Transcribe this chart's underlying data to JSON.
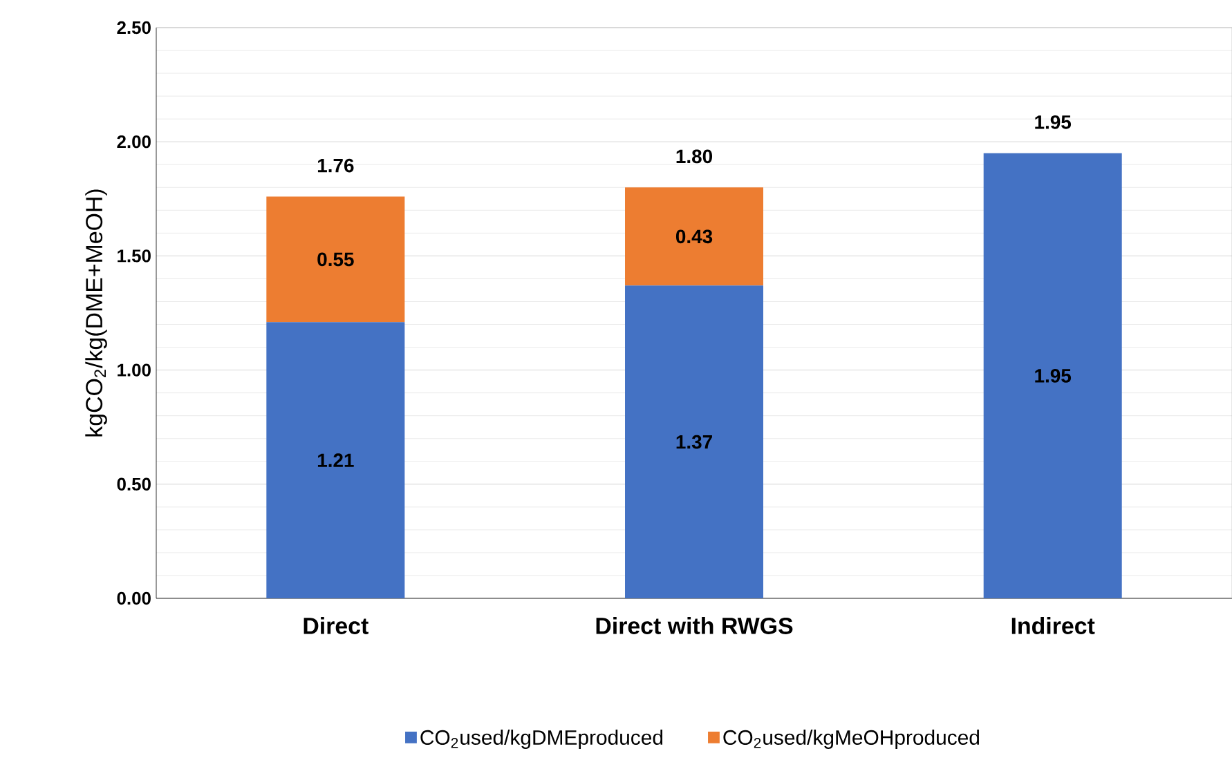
{
  "chart_data": {
    "type": "bar",
    "stacked": true,
    "categories": [
      "Direct",
      "Direct with RWGS",
      "Indirect"
    ],
    "ylabel": "kgCO$_{2}$/kg(DME+MeOH)",
    "series": [
      {
        "name": "CO$_{2}$used/kgDMEproduced",
        "color": "#4472c4",
        "values": [
          1.21,
          1.37,
          1.95
        ]
      },
      {
        "name": "CO$_{2}$used/kgMeOHproduced",
        "color": "#ed7d31",
        "values": [
          0.55,
          0.43,
          null
        ]
      }
    ],
    "totals": [
      "1.76",
      "1.80",
      "1.95"
    ],
    "data_labels": true,
    "ylim": [
      0,
      2.5
    ],
    "yticks": [
      {
        "value": 0,
        "label": "0.00"
      },
      {
        "value": 0.5,
        "label": "0.50"
      },
      {
        "value": 1,
        "label": "1.00"
      },
      {
        "value": 1.5,
        "label": "1.50"
      },
      {
        "value": 2,
        "label": "2.00"
      },
      {
        "value": 2.5,
        "label": "2.50"
      }
    ],
    "grid": true,
    "legend": "bottom"
  }
}
